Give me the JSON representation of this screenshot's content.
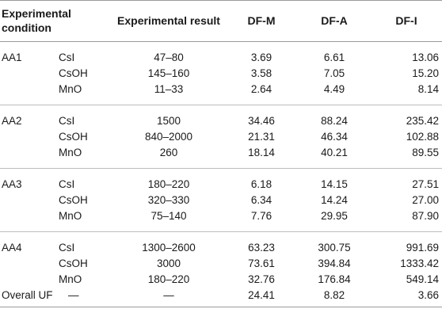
{
  "header": {
    "condition": "Experimental condition",
    "result": "Experimental result",
    "dfm": "DF-M",
    "dfa": "DF-A",
    "dfi": "DF-I"
  },
  "groups": [
    {
      "condition": "AA1",
      "rows": [
        {
          "species": "CsI",
          "result": "47–80",
          "dfm": "3.69",
          "dfa": "6.61",
          "dfi": "13.06"
        },
        {
          "species": "CsOH",
          "result": "145–160",
          "dfm": "3.58",
          "dfa": "7.05",
          "dfi": "15.20"
        },
        {
          "species": "MnO",
          "result": "11–33",
          "dfm": "2.64",
          "dfa": "4.49",
          "dfi": "8.14"
        }
      ]
    },
    {
      "condition": "AA2",
      "rows": [
        {
          "species": "CsI",
          "result": "1500",
          "dfm": "34.46",
          "dfa": "88.24",
          "dfi": "235.42"
        },
        {
          "species": "CsOH",
          "result": "840–2000",
          "dfm": "21.31",
          "dfa": "46.34",
          "dfi": "102.88"
        },
        {
          "species": "MnO",
          "result": "260",
          "dfm": "18.14",
          "dfa": "40.21",
          "dfi": "89.55"
        }
      ]
    },
    {
      "condition": "AA3",
      "rows": [
        {
          "species": "CsI",
          "result": "180–220",
          "dfm": "6.18",
          "dfa": "14.15",
          "dfi": "27.51"
        },
        {
          "species": "CsOH",
          "result": "320–330",
          "dfm": "6.34",
          "dfa": "14.24",
          "dfi": "27.00"
        },
        {
          "species": "MnO",
          "result": "75–140",
          "dfm": "7.76",
          "dfa": "29.95",
          "dfi": "87.90"
        }
      ]
    },
    {
      "condition": "AA4",
      "rows": [
        {
          "species": "CsI",
          "result": "1300–2600",
          "dfm": "63.23",
          "dfa": "300.75",
          "dfi": "991.69"
        },
        {
          "species": "CsOH",
          "result": "3000",
          "dfm": "73.61",
          "dfa": "394.84",
          "dfi": "1333.42"
        },
        {
          "species": "MnO",
          "result": "180–220",
          "dfm": "32.76",
          "dfa": "176.84",
          "dfi": "549.14"
        }
      ]
    }
  ],
  "overall": {
    "condition": "Overall UF",
    "species": "—",
    "result": "—",
    "dfm": "24.41",
    "dfa": "8.82",
    "dfi": "3.66"
  }
}
